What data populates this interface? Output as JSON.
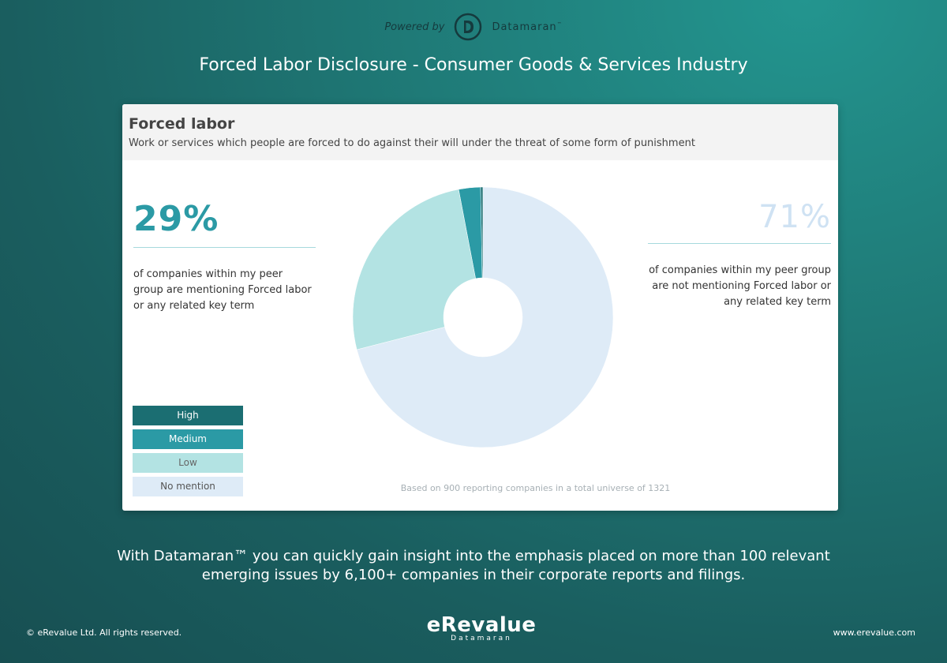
{
  "header": {
    "powered_by": "Powered by",
    "brand": "Datamaran",
    "brand_tm": "™",
    "title": "Forced Labor Disclosure - Consumer Goods & Services Industry"
  },
  "card": {
    "title": "Forced labor",
    "subtitle": "Work or services which people are forced to do against their will under the threat of some form of punishment",
    "left_stat": {
      "value": "29%",
      "description": "of companies within my peer group are mentioning Forced labor or any related key term"
    },
    "right_stat": {
      "value": "71%",
      "description": "of companies within my peer group are not mentioning Forced labor or any related key term"
    },
    "footnote": "Based on 900 reporting companies in a total universe of 1321"
  },
  "chart_data": {
    "type": "pie",
    "donut": true,
    "categories": [
      "High",
      "Medium",
      "Low",
      "No mention"
    ],
    "values": [
      0.3,
      2.7,
      26,
      71
    ],
    "colors": [
      "#1b6e72",
      "#2b9aa5",
      "#b3e3e3",
      "#deebf7"
    ],
    "legend_placement": "bottom-left",
    "legend_text_colors": [
      "#ffffff",
      "#ffffff",
      "#666666",
      "#555555"
    ]
  },
  "tagline": {
    "line1": "With Datamaran™ you can quickly gain insight into the emphasis placed on more than 100 relevant",
    "line2": "emerging issues by 6,100+ companies in their corporate reports and filings."
  },
  "footer": {
    "copyright": "© eRevalue Ltd. All rights reserved.",
    "logo_main": "eRevalue",
    "logo_sub": "Datamaran",
    "website": "www.erevalue.com"
  }
}
